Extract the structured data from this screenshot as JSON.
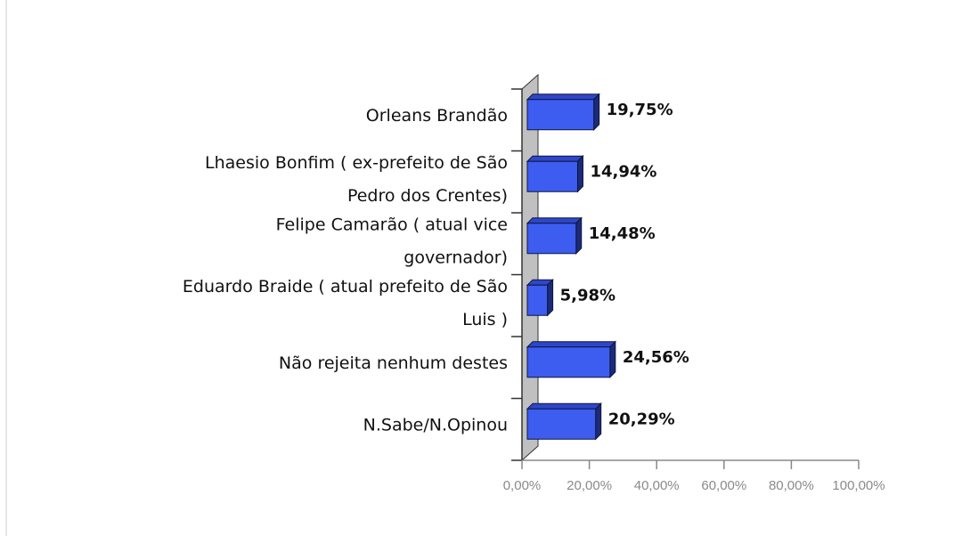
{
  "chart_data": {
    "type": "bar",
    "orientation": "horizontal",
    "style": "3d",
    "categories": [
      [
        "Orleans Brandão"
      ],
      [
        "Lhaesio Bonfim ( ex-prefeito de São",
        "Pedro dos Crentes)"
      ],
      [
        "Felipe Camarão ( atual vice",
        "governador)"
      ],
      [
        "Eduardo Braide ( atual prefeito de São",
        "Luis )"
      ],
      [
        "Não rejeita nenhum destes"
      ],
      [
        "N.Sabe/N.Opinou"
      ]
    ],
    "values": [
      19.75,
      14.94,
      14.48,
      5.98,
      24.56,
      20.29
    ],
    "value_labels": [
      "19,75%",
      "14,94%",
      "14,48%",
      "5,98%",
      "24,56%",
      "20,29%"
    ],
    "xlim": [
      0,
      100
    ],
    "x_ticks": [
      0,
      20,
      40,
      60,
      80,
      100
    ],
    "x_tick_labels": [
      "0,00%",
      "20,00%",
      "40,00%",
      "60,00%",
      "80,00%",
      "100,00%"
    ],
    "title": "",
    "xlabel": "",
    "ylabel": "",
    "grid": false,
    "colors": {
      "bar": "#3d5cf0",
      "bar_side": "#1c2a78",
      "bar_top": "#2e46c8",
      "wall": "#c0c0c0",
      "axis": "#888888"
    }
  }
}
